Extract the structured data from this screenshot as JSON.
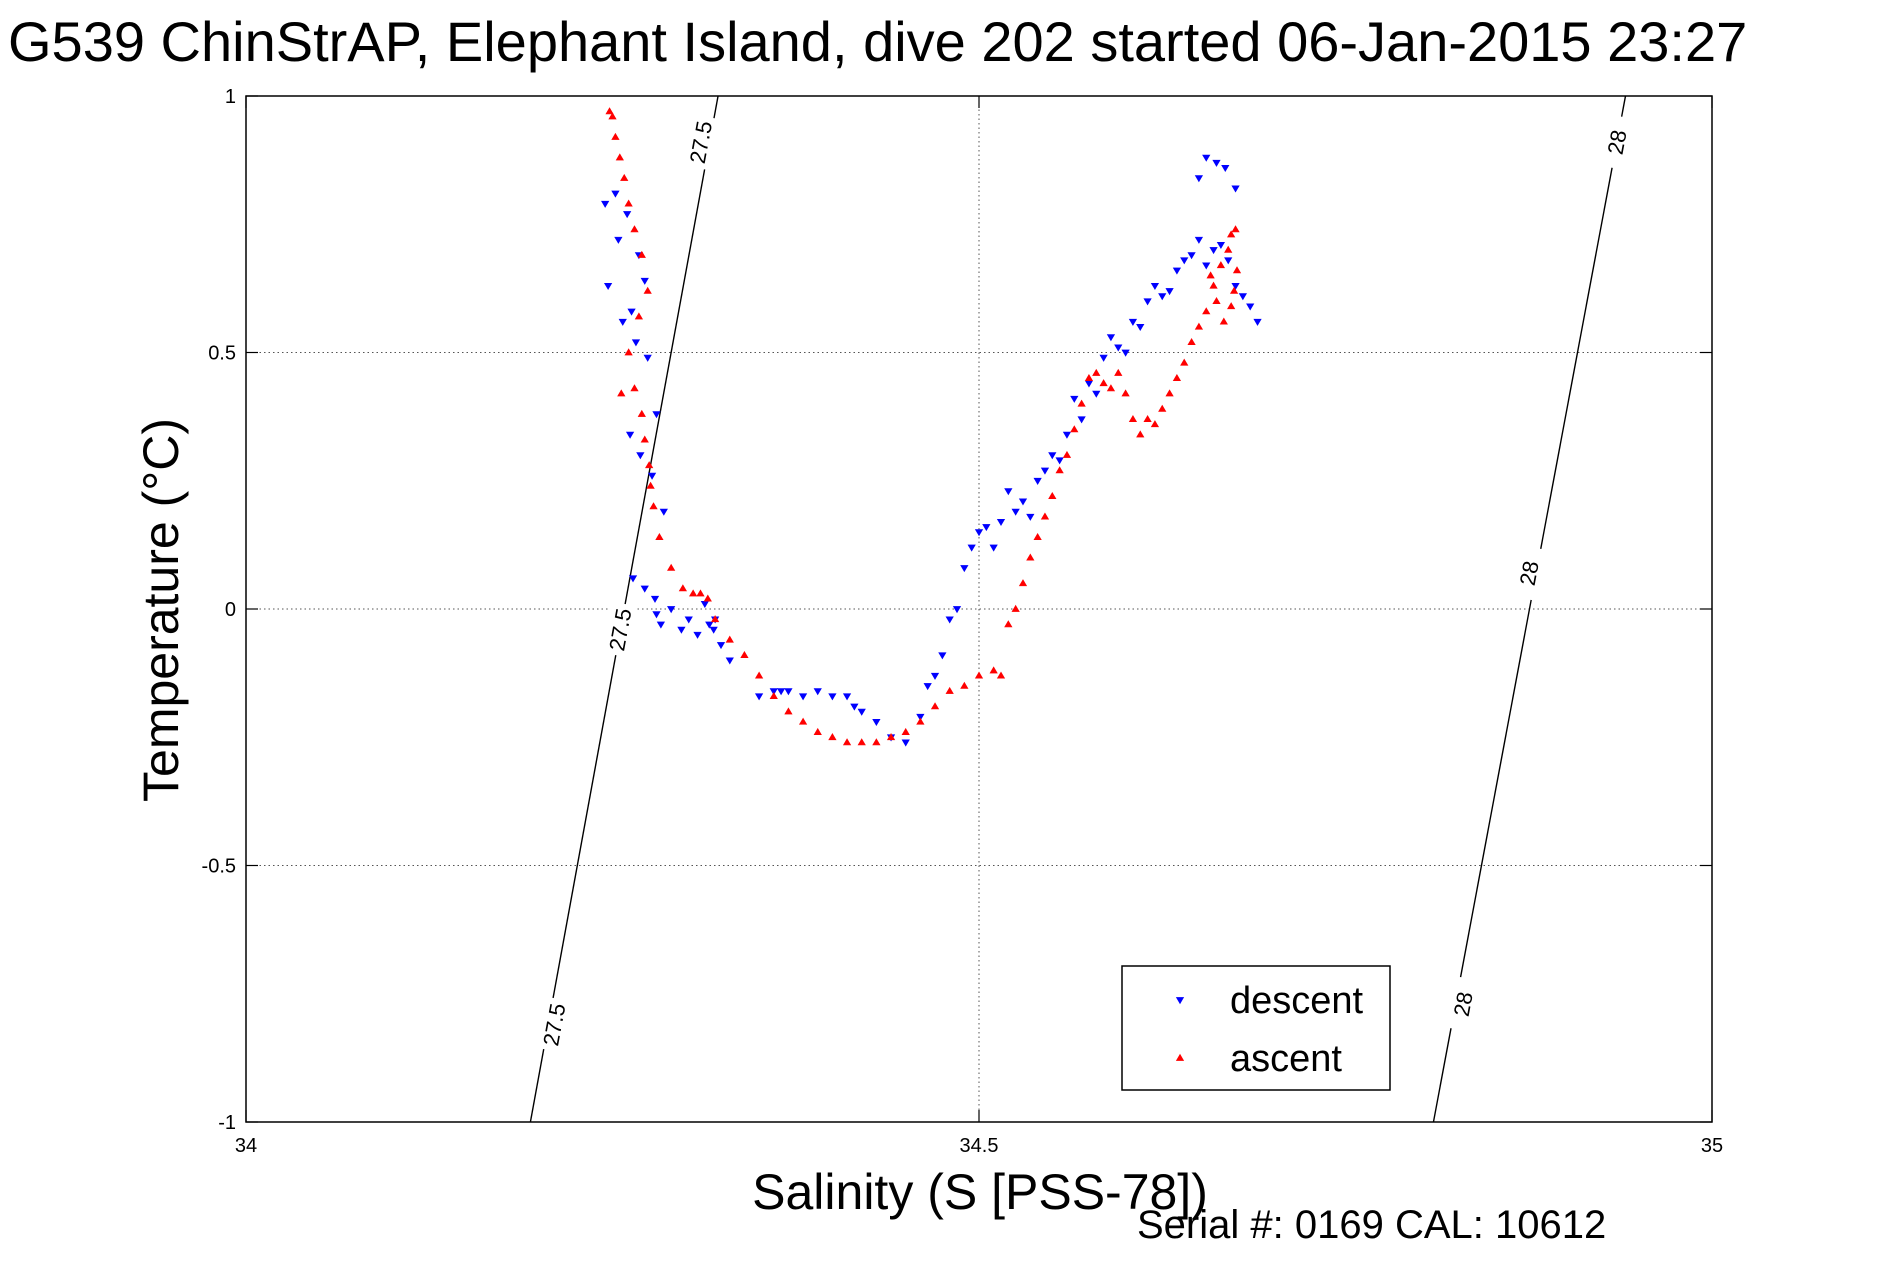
{
  "chart_data": {
    "type": "scatter",
    "title": "G539 ChinStrAP, Elephant Island, dive 202 started 06-Jan-2015 23:27",
    "xlabel": "Salinity (S [PSS-78])",
    "ylabel": "Temperature (°C)",
    "xlim": [
      34,
      35
    ],
    "ylim": [
      -1,
      1
    ],
    "x_ticks": [
      "34",
      "34.5",
      "35"
    ],
    "x_tick_values": [
      34,
      34.5,
      35
    ],
    "y_ticks": [
      "1",
      "0.5",
      "0",
      "-0.5",
      "-1"
    ],
    "y_tick_values": [
      1,
      0.5,
      0,
      -0.5,
      -1
    ],
    "grid": true,
    "legend_position": "bottom-right",
    "footer": "Serial #: 0169 CAL: 10612",
    "contours": [
      {
        "label": "27.5",
        "line": [
          [
            34.194,
            -1.0
          ],
          [
            34.322,
            1.0
          ]
        ],
        "label_points": [
          [
            34.21,
            -0.81
          ],
          [
            34.255,
            -0.04
          ],
          [
            34.31,
            0.91
          ]
        ]
      },
      {
        "label": "28",
        "line": [
          [
            34.81,
            -1.0
          ],
          [
            34.941,
            1.0
          ]
        ],
        "label_points": [
          [
            34.83,
            -0.77
          ],
          [
            34.875,
            0.07
          ],
          [
            34.935,
            0.91
          ]
        ]
      }
    ],
    "series": [
      {
        "name": "descent",
        "color": "#0000ff",
        "marker": "triangle-down",
        "x": [
          34.245,
          34.247,
          34.252,
          34.254,
          34.26,
          34.268,
          34.272,
          34.257,
          34.263,
          34.266,
          34.274,
          34.28,
          34.262,
          34.269,
          34.277,
          34.285,
          34.264,
          34.272,
          34.279,
          34.28,
          34.283,
          34.29,
          34.297,
          34.302,
          34.308,
          34.313,
          34.316,
          34.319,
          34.32,
          34.324,
          34.33,
          34.35,
          34.36,
          34.365,
          34.37,
          34.38,
          34.39,
          34.4,
          34.41,
          34.415,
          34.42,
          34.43,
          34.44,
          34.45,
          34.46,
          34.465,
          34.47,
          34.475,
          34.48,
          34.485,
          34.49,
          34.495,
          34.5,
          34.505,
          34.51,
          34.515,
          34.52,
          34.525,
          34.53,
          34.535,
          34.54,
          34.545,
          34.55,
          34.555,
          34.56,
          34.565,
          34.57,
          34.575,
          34.58,
          34.585,
          34.59,
          34.595,
          34.6,
          34.605,
          34.61,
          34.615,
          34.62,
          34.625,
          34.63,
          34.635,
          34.64,
          34.645,
          34.65,
          34.655,
          34.66,
          34.665,
          34.67,
          34.675,
          34.68,
          34.685,
          34.69,
          34.65,
          34.655,
          34.662,
          34.668,
          34.675
        ],
        "y": [
          0.79,
          0.63,
          0.81,
          0.72,
          0.77,
          0.69,
          0.64,
          0.56,
          0.58,
          0.52,
          0.49,
          0.38,
          0.34,
          0.3,
          0.26,
          0.19,
          0.06,
          0.04,
          0.02,
          -0.01,
          -0.03,
          0.0,
          -0.04,
          -0.02,
          -0.05,
          0.01,
          -0.03,
          -0.04,
          -0.02,
          -0.07,
          -0.1,
          -0.17,
          -0.16,
          -0.16,
          -0.16,
          -0.17,
          -0.16,
          -0.17,
          -0.17,
          -0.19,
          -0.2,
          -0.22,
          -0.25,
          -0.26,
          -0.21,
          -0.15,
          -0.13,
          -0.09,
          -0.02,
          0.0,
          0.08,
          0.12,
          0.15,
          0.16,
          0.12,
          0.17,
          0.23,
          0.19,
          0.21,
          0.18,
          0.25,
          0.27,
          0.3,
          0.29,
          0.34,
          0.41,
          0.37,
          0.44,
          0.42,
          0.49,
          0.53,
          0.51,
          0.5,
          0.56,
          0.55,
          0.6,
          0.63,
          0.61,
          0.62,
          0.66,
          0.68,
          0.69,
          0.72,
          0.67,
          0.7,
          0.71,
          0.68,
          0.63,
          0.61,
          0.59,
          0.56,
          0.84,
          0.88,
          0.87,
          0.86,
          0.82
        ]
      },
      {
        "name": "ascent",
        "color": "#ff0000",
        "marker": "triangle-up",
        "x": [
          34.248,
          34.25,
          34.252,
          34.255,
          34.258,
          34.261,
          34.265,
          34.27,
          34.274,
          34.268,
          34.261,
          34.256,
          34.265,
          34.27,
          34.272,
          34.275,
          34.276,
          34.278,
          34.282,
          34.29,
          34.298,
          34.305,
          34.31,
          34.315,
          34.32,
          34.33,
          34.34,
          34.35,
          34.36,
          34.37,
          34.38,
          34.39,
          34.4,
          34.41,
          34.42,
          34.43,
          34.44,
          34.45,
          34.46,
          34.47,
          34.48,
          34.49,
          34.5,
          34.51,
          34.515,
          34.52,
          34.525,
          34.53,
          34.535,
          34.54,
          34.545,
          34.55,
          34.555,
          34.56,
          34.565,
          34.57,
          34.575,
          34.58,
          34.585,
          34.59,
          34.595,
          34.6,
          34.605,
          34.61,
          34.615,
          34.62,
          34.625,
          34.63,
          34.635,
          34.64,
          34.645,
          34.65,
          34.655,
          34.66,
          34.665,
          34.67,
          34.672,
          34.675,
          34.676,
          34.674,
          34.672,
          34.667,
          34.662,
          34.658
        ],
        "y": [
          0.97,
          0.96,
          0.92,
          0.88,
          0.84,
          0.79,
          0.74,
          0.69,
          0.62,
          0.57,
          0.5,
          0.42,
          0.43,
          0.38,
          0.33,
          0.28,
          0.24,
          0.2,
          0.14,
          0.08,
          0.04,
          0.03,
          0.03,
          0.02,
          -0.02,
          -0.06,
          -0.09,
          -0.13,
          -0.17,
          -0.2,
          -0.22,
          -0.24,
          -0.25,
          -0.26,
          -0.26,
          -0.26,
          -0.25,
          -0.24,
          -0.22,
          -0.19,
          -0.16,
          -0.15,
          -0.13,
          -0.12,
          -0.13,
          -0.03,
          0.0,
          0.05,
          0.1,
          0.14,
          0.18,
          0.22,
          0.27,
          0.3,
          0.35,
          0.4,
          0.45,
          0.46,
          0.44,
          0.43,
          0.46,
          0.42,
          0.37,
          0.34,
          0.37,
          0.36,
          0.39,
          0.42,
          0.45,
          0.48,
          0.52,
          0.55,
          0.58,
          0.63,
          0.67,
          0.7,
          0.73,
          0.74,
          0.66,
          0.62,
          0.59,
          0.56,
          0.6,
          0.65
        ]
      }
    ]
  }
}
